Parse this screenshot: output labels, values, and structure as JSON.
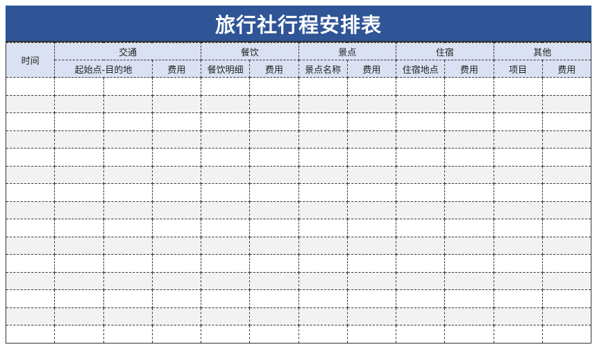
{
  "title": "旅行社行程安排表",
  "header": {
    "time": "时间",
    "groups": [
      "交通",
      "餐饮",
      "景点",
      "住宿",
      "其他"
    ],
    "sub": [
      "起始点-目的地",
      "费用",
      "餐饮明细",
      "费用",
      "景点名称",
      "费用",
      "住宿地点",
      "费用",
      "项目",
      "费用"
    ]
  },
  "row_count": 15,
  "colors": {
    "title_bg": "#2f5597",
    "header_bg": "#d9e1f2",
    "alt_row_bg": "#f2f2f2"
  }
}
